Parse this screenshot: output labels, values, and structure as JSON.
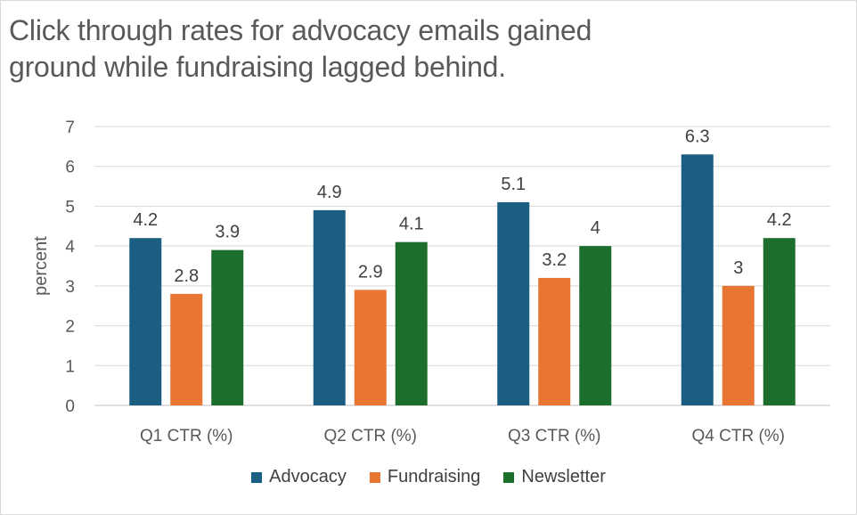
{
  "chart_data": {
    "type": "bar",
    "title": "Click through rates for advocacy emails gained ground while fundraising lagged behind.",
    "xlabel": "",
    "ylabel": "percent",
    "ylim": [
      0,
      7
    ],
    "yticks": [
      0,
      1,
      2,
      3,
      4,
      5,
      6,
      7
    ],
    "grid": true,
    "legend_position": "bottom",
    "categories": [
      "Q1 CTR (%)",
      "Q2 CTR (%)",
      "Q3 CTR (%)",
      "Q4 CTR (%)"
    ],
    "series": [
      {
        "name": "Advocacy",
        "color": "#1a5f82",
        "values": [
          4.2,
          4.9,
          5.1,
          6.3
        ]
      },
      {
        "name": "Fundraising",
        "color": "#e87532",
        "values": [
          2.8,
          2.9,
          3.2,
          3
        ]
      },
      {
        "name": "Newsletter",
        "color": "#1b6e2b",
        "values": [
          3.9,
          4.1,
          4,
          4.2
        ]
      }
    ]
  }
}
